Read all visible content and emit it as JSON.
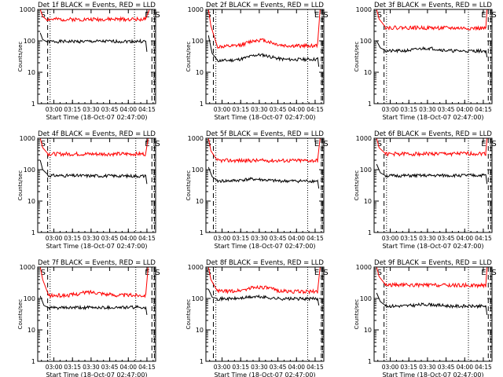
{
  "colors": {
    "events": "#000000",
    "lld": "#ff0000",
    "axis": "#000000",
    "background": "#ffffff"
  },
  "common": {
    "ylabel": "Counts/sec",
    "xlabel": "Start Time (18-Oct-07 02:47:00)",
    "x_ticks": [
      "03:00",
      "03:15",
      "03:30",
      "03:45",
      "04:00",
      "04:15"
    ],
    "y_ticks": [
      "1",
      "10",
      "100",
      "1000"
    ],
    "ylim": [
      1,
      1000
    ],
    "y_scale": "log",
    "xlim": [
      "02:47",
      "04:22"
    ],
    "markers": [
      "S",
      "E",
      "S"
    ]
  },
  "chart_data": [
    {
      "type": "line",
      "title": "Det 1f BLACK = Events, RED = LLD",
      "series": [
        {
          "name": "Events",
          "level": 95,
          "edge": [
            {
              "x": "02:49",
              "y": 180
            },
            {
              "x": "02:51",
              "y": 110
            },
            {
              "x": "02:54",
              "y": 95
            },
            {
              "x": "04:14",
              "y": 98
            },
            {
              "x": "04:15",
              "y": 45
            }
          ]
        },
        {
          "name": "LLD",
          "level": 480,
          "edge": [
            {
              "x": "02:49",
              "y": 1000
            },
            {
              "x": "02:51",
              "y": 600
            },
            {
              "x": "02:54",
              "y": 480
            },
            {
              "x": "04:14",
              "y": 500
            },
            {
              "x": "04:17",
              "y": 1000
            }
          ]
        }
      ],
      "lines": {
        "dashed": [
          "02:55",
          "04:19",
          "04:21"
        ],
        "dotted": [
          "02:57",
          "04:05"
        ]
      }
    },
    {
      "type": "line",
      "title": "Det 2f BLACK = Events, RED = LLD",
      "series": [
        {
          "name": "Events",
          "level": 22,
          "bump": {
            "x": "03:30",
            "y": 32
          },
          "edge": [
            {
              "x": "02:49",
              "y": 150
            },
            {
              "x": "02:52",
              "y": 40
            },
            {
              "x": "02:56",
              "y": 25
            },
            {
              "x": "04:17",
              "y": 30
            },
            {
              "x": "04:18",
              "y": 15
            }
          ]
        },
        {
          "name": "LLD",
          "level": 60,
          "bump": {
            "x": "03:30",
            "y": 95
          },
          "edge": [
            {
              "x": "02:49",
              "y": 1000
            },
            {
              "x": "02:51",
              "y": 300
            },
            {
              "x": "02:56",
              "y": 70
            },
            {
              "x": "04:17",
              "y": 80
            },
            {
              "x": "04:19",
              "y": 1000
            }
          ]
        }
      ],
      "lines": {
        "dashed": [
          "02:53",
          "04:20",
          "04:21"
        ],
        "dotted": [
          "02:55",
          "04:09"
        ]
      }
    },
    {
      "type": "line",
      "title": "Det 3f BLACK = Events, RED = LLD",
      "series": [
        {
          "name": "Events",
          "level": 45,
          "bump": {
            "x": "03:30",
            "y": 55
          },
          "edge": [
            {
              "x": "02:49",
              "y": 100
            },
            {
              "x": "02:52",
              "y": 60
            },
            {
              "x": "02:56",
              "y": 50
            },
            {
              "x": "04:17",
              "y": 50
            },
            {
              "x": "04:18",
              "y": 30
            }
          ]
        },
        {
          "name": "LLD",
          "level": 250,
          "edge": [
            {
              "x": "02:49",
              "y": 1000
            },
            {
              "x": "02:51",
              "y": 500
            },
            {
              "x": "02:56",
              "y": 280
            },
            {
              "x": "04:17",
              "y": 250
            },
            {
              "x": "04:18",
              "y": 1000
            }
          ]
        }
      ],
      "lines": {
        "dashed": [
          "02:55",
          "04:19",
          "04:21"
        ],
        "dotted": [
          "02:57",
          "04:03"
        ]
      }
    },
    {
      "type": "line",
      "title": "Det 4f BLACK = Events, RED = LLD",
      "series": [
        {
          "name": "Events",
          "level": 60,
          "edge": [
            {
              "x": "02:49",
              "y": 200
            },
            {
              "x": "02:51",
              "y": 100
            },
            {
              "x": "02:55",
              "y": 70
            },
            {
              "x": "04:14",
              "y": 65
            },
            {
              "x": "04:15",
              "y": 35
            }
          ]
        },
        {
          "name": "LLD",
          "level": 300,
          "edge": [
            {
              "x": "02:49",
              "y": 1000
            },
            {
              "x": "02:51",
              "y": 500
            },
            {
              "x": "02:55",
              "y": 330
            },
            {
              "x": "04:14",
              "y": 330
            },
            {
              "x": "04:16",
              "y": 1000
            }
          ]
        }
      ],
      "lines": {
        "dashed": [
          "02:55",
          "04:19",
          "04:21"
        ],
        "dotted": [
          "02:57",
          "04:06"
        ]
      }
    },
    {
      "type": "line",
      "title": "Det 5f BLACK = Events, RED = LLD",
      "series": [
        {
          "name": "Events",
          "level": 42,
          "bump": {
            "x": "03:25",
            "y": 48
          },
          "edge": [
            {
              "x": "02:49",
              "y": 120
            },
            {
              "x": "02:52",
              "y": 60
            },
            {
              "x": "02:56",
              "y": 45
            },
            {
              "x": "04:17",
              "y": 45
            },
            {
              "x": "04:18",
              "y": 25
            }
          ]
        },
        {
          "name": "LLD",
          "level": 190,
          "edge": [
            {
              "x": "02:49",
              "y": 1000
            },
            {
              "x": "02:51",
              "y": 400
            },
            {
              "x": "02:56",
              "y": 200
            },
            {
              "x": "04:17",
              "y": 200
            },
            {
              "x": "04:19",
              "y": 1000
            }
          ]
        }
      ],
      "lines": {
        "dashed": [
          "02:53",
          "04:20",
          "04:21"
        ],
        "dotted": [
          "02:55",
          "04:09"
        ]
      }
    },
    {
      "type": "line",
      "title": "Det 6f BLACK = Events, RED = LLD",
      "series": [
        {
          "name": "Events",
          "level": 62,
          "edge": [
            {
              "x": "02:49",
              "y": 150
            },
            {
              "x": "02:52",
              "y": 80
            },
            {
              "x": "02:56",
              "y": 65
            },
            {
              "x": "04:17",
              "y": 70
            },
            {
              "x": "04:18",
              "y": 35
            }
          ]
        },
        {
          "name": "LLD",
          "level": 300,
          "edge": [
            {
              "x": "02:49",
              "y": 1000
            },
            {
              "x": "02:51",
              "y": 500
            },
            {
              "x": "02:56",
              "y": 330
            },
            {
              "x": "04:17",
              "y": 350
            },
            {
              "x": "04:18",
              "y": 1000
            }
          ]
        }
      ],
      "lines": {
        "dashed": [
          "02:55",
          "04:19",
          "04:21"
        ],
        "dotted": [
          "02:57",
          "04:03"
        ]
      }
    },
    {
      "type": "line",
      "title": "Det 7f BLACK = Events, RED = LLD",
      "series": [
        {
          "name": "Events",
          "level": 50,
          "edge": [
            {
              "x": "02:49",
              "y": 120
            },
            {
              "x": "02:52",
              "y": 60
            },
            {
              "x": "02:56",
              "y": 50
            },
            {
              "x": "04:14",
              "y": 55
            },
            {
              "x": "04:15",
              "y": 30
            }
          ]
        },
        {
          "name": "LLD",
          "level": 125,
          "bump": {
            "x": "03:30",
            "y": 160
          },
          "edge": [
            {
              "x": "02:49",
              "y": 1000
            },
            {
              "x": "02:51",
              "y": 400
            },
            {
              "x": "02:56",
              "y": 120
            },
            {
              "x": "04:14",
              "y": 130
            },
            {
              "x": "04:16",
              "y": 1000
            }
          ]
        }
      ],
      "lines": {
        "dashed": [
          "02:55",
          "04:19",
          "04:21"
        ],
        "dotted": [
          "02:57",
          "04:06"
        ]
      }
    },
    {
      "type": "line",
      "title": "Det 8f BLACK = Events, RED = LLD",
      "series": [
        {
          "name": "Events",
          "level": 95,
          "bump": {
            "x": "03:28",
            "y": 110
          },
          "edge": [
            {
              "x": "02:49",
              "y": 200
            },
            {
              "x": "02:52",
              "y": 110
            },
            {
              "x": "02:56",
              "y": 100
            },
            {
              "x": "04:17",
              "y": 100
            },
            {
              "x": "04:18",
              "y": 60
            }
          ]
        },
        {
          "name": "LLD",
          "level": 160,
          "bump": {
            "x": "03:30",
            "y": 220
          },
          "edge": [
            {
              "x": "02:49",
              "y": 1000
            },
            {
              "x": "02:51",
              "y": 400
            },
            {
              "x": "02:56",
              "y": 180
            },
            {
              "x": "04:17",
              "y": 170
            },
            {
              "x": "04:19",
              "y": 1000
            }
          ]
        }
      ],
      "lines": {
        "dashed": [
          "02:53",
          "04:20",
          "04:21"
        ],
        "dotted": [
          "02:55",
          "04:09"
        ]
      }
    },
    {
      "type": "line",
      "title": "Det 9f BLACK = Events, RED = LLD",
      "series": [
        {
          "name": "Events",
          "level": 55,
          "bump": {
            "x": "03:30",
            "y": 62
          },
          "edge": [
            {
              "x": "02:49",
              "y": 150
            },
            {
              "x": "02:52",
              "y": 80
            },
            {
              "x": "02:56",
              "y": 60
            },
            {
              "x": "04:17",
              "y": 58
            },
            {
              "x": "04:18",
              "y": 30
            }
          ]
        },
        {
          "name": "LLD",
          "level": 260,
          "edge": [
            {
              "x": "02:49",
              "y": 1000
            },
            {
              "x": "02:51",
              "y": 500
            },
            {
              "x": "02:56",
              "y": 280
            },
            {
              "x": "04:17",
              "y": 260
            },
            {
              "x": "04:18",
              "y": 1000
            }
          ]
        }
      ],
      "lines": {
        "dashed": [
          "02:55",
          "04:19",
          "04:21"
        ],
        "dotted": [
          "02:57",
          "04:03"
        ]
      }
    }
  ]
}
